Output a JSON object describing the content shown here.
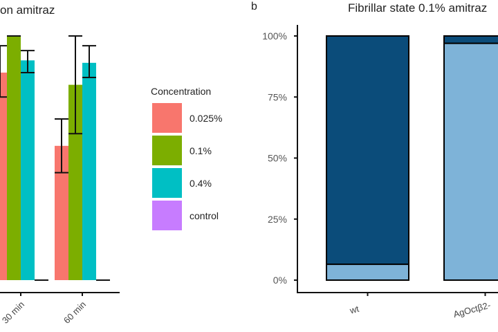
{
  "chart_data": [
    {
      "type": "bar",
      "title": "on amitraz",
      "categories": [
        "30 min",
        "60 min"
      ],
      "series": [
        {
          "name": "0.025%",
          "values": [
            0.85,
            0.55
          ],
          "error_low": [
            0.75,
            0.44
          ],
          "error_high": [
            0.96,
            0.66
          ],
          "color": "#f8766d"
        },
        {
          "name": "0.1%",
          "values": [
            1.0,
            0.8
          ],
          "error_low": [
            1.0,
            0.6
          ],
          "error_high": [
            1.0,
            1.0
          ],
          "color": "#7cae00"
        },
        {
          "name": "0.4%",
          "values": [
            0.9,
            0.89
          ],
          "error_low": [
            0.85,
            0.83
          ],
          "error_high": [
            0.94,
            0.96
          ],
          "color": "#00bfc4"
        },
        {
          "name": "control",
          "values": [
            0,
            0
          ],
          "error_low": [
            0,
            0
          ],
          "error_high": [
            0,
            0
          ],
          "color": "#c77cff"
        }
      ],
      "ylim": [
        0,
        1
      ],
      "legend": {
        "title": "Concentration",
        "placement": "right"
      },
      "grid": false
    },
    {
      "type": "bar",
      "stacked": true,
      "panel_label": "b",
      "title": "Fibrillar state 0.1% amitraz",
      "categories": [
        "wt",
        "AgOctβ2-"
      ],
      "series": [
        {
          "values": [
            0.065,
            0.97
          ],
          "color": "#7eb3d8"
        },
        {
          "values": [
            0.935,
            0.03
          ],
          "color": "#0b4c7a"
        }
      ],
      "yticks": [
        "0%",
        "25%",
        "50%",
        "75%",
        "100%"
      ],
      "ylim": [
        0,
        1
      ],
      "grid": false
    }
  ]
}
